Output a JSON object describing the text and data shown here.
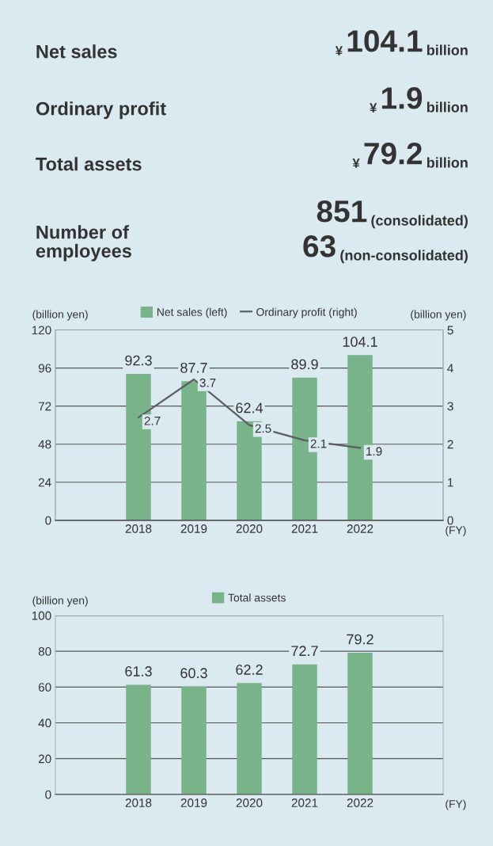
{
  "chart_data": [
    {
      "type": "other",
      "annotations": [
        "Net sales",
        "¥",
        "104.1",
        "billion",
        "Ordinary profit",
        "¥",
        "1.9",
        "billion",
        "Total assets",
        "¥",
        "79.2",
        "billion",
        "Number of\nemployees",
        "851",
        "(consolidated)",
        "63",
        "(non-consolidated)"
      ]
    },
    {
      "type": "bar",
      "categories": [
        "2018",
        "2019",
        "2020",
        "2021",
        "2022"
      ],
      "series": [
        {
          "name": "Net sales (left)",
          "color": "#79b38a",
          "values": [
            92.3,
            87.7,
            62.4,
            89.9,
            104.1
          ]
        },
        {
          "name": "Ordinary profit (right)",
          "type": "line",
          "axis": "y2",
          "color": "#5c5e60",
          "values": [
            2.7,
            3.7,
            2.5,
            2.1,
            1.9
          ]
        }
      ],
      "ylabel": "(billion yen)",
      "y2label": "(billion yen)",
      "xlabel": "(FY)",
      "ylim": [
        0,
        120
      ],
      "yticks": [
        0,
        24,
        48,
        72,
        96,
        120
      ],
      "y2lim": [
        0,
        5
      ],
      "y2ticks": [
        0,
        1,
        2,
        3,
        4,
        5
      ],
      "grid": "y",
      "legend": "top",
      "data_labels": true,
      "marker": "none"
    },
    {
      "type": "bar",
      "categories": [
        "2018",
        "2019",
        "2020",
        "2021",
        "2022"
      ],
      "series": [
        {
          "name": "Total assets",
          "color": "#79b38a",
          "values": [
            61.3,
            60.3,
            62.2,
            72.7,
            79.2
          ]
        }
      ],
      "ylabel": "(billion yen)",
      "xlabel": "(FY)",
      "ylim": [
        0,
        100
      ],
      "yticks": [
        0,
        20,
        40,
        60,
        80,
        100
      ],
      "grid": "y",
      "legend": "top",
      "data_labels": true
    }
  ]
}
